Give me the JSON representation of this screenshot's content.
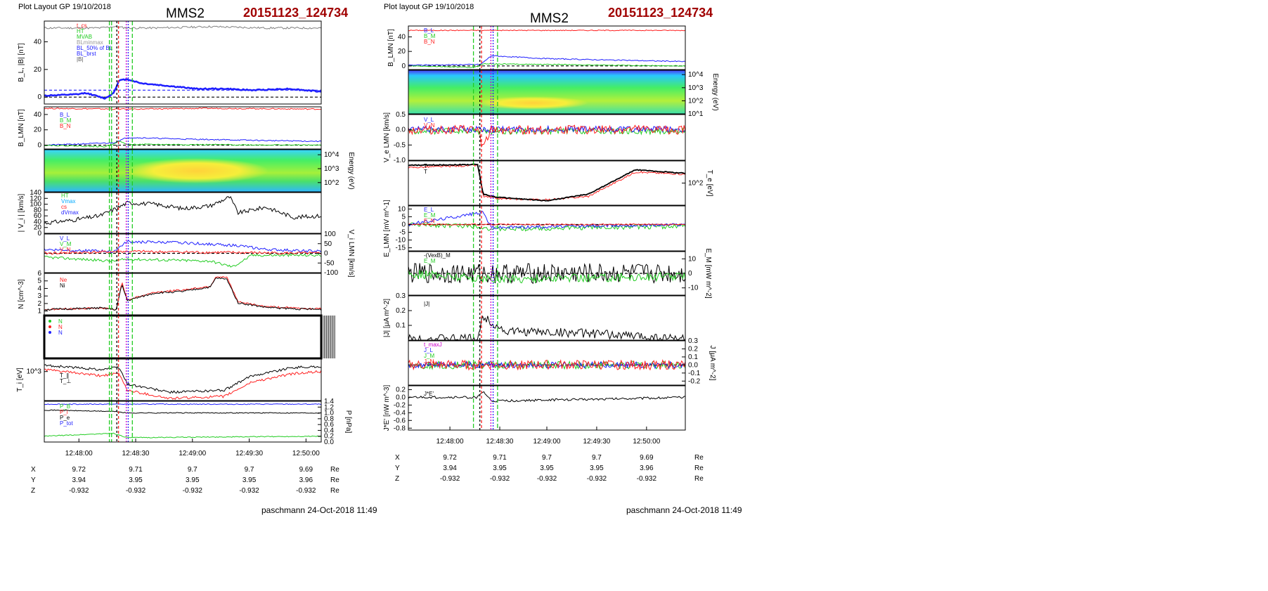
{
  "left": {
    "layout_label": "Plot Layout GP 19/10/2018",
    "spacecraft": "MMS2",
    "event_id": "20151123_124734",
    "footer": "paschmann 24-Oct-2018 11:49",
    "time_ticks": [
      "12:48:00",
      "12:48:30",
      "12:49:00",
      "12:49:30",
      "12:50:00"
    ],
    "ephem": [
      {
        "label": "X",
        "values": [
          "9.72",
          "9.71",
          "9.7",
          "9.7",
          "9.69"
        ],
        "unit": "Re"
      },
      {
        "label": "Y",
        "values": [
          "3.94",
          "3.95",
          "3.95",
          "3.95",
          "3.96"
        ],
        "unit": "Re"
      },
      {
        "label": "Z",
        "values": [
          "-0.932",
          "-0.932",
          "-0.932",
          "-0.932",
          "-0.932"
        ],
        "unit": "Re"
      }
    ]
  },
  "right": {
    "layout_label": "Plot layout GP 19/10/2018",
    "spacecraft": "MMS2",
    "event_id": "20151123_124734",
    "footer": "paschmann 24-Oct-2018 11:49",
    "time_ticks": [
      "12:48:00",
      "12:48:30",
      "12:49:00",
      "12:49:30",
      "12:50:00"
    ],
    "ephem": [
      {
        "label": "X",
        "values": [
          "9.72",
          "9.71",
          "9.7",
          "9.7",
          "9.69"
        ],
        "unit": "Re"
      },
      {
        "label": "Y",
        "values": [
          "3.94",
          "3.95",
          "3.95",
          "3.95",
          "3.96"
        ],
        "unit": "Re"
      },
      {
        "label": "Z",
        "values": [
          "-0.932",
          "-0.932",
          "-0.932",
          "-0.932",
          "-0.932"
        ],
        "unit": "Re"
      }
    ]
  },
  "colors": {
    "blue": "#1f1fff",
    "red": "#ff2020",
    "green": "#22cc22",
    "black": "#000000",
    "grey": "#808080",
    "cyan": "#00aaff",
    "magenta": "#cc00cc",
    "title_red": "#a00000"
  },
  "chart_data": [
    {
      "type": "line",
      "panel": "left-1",
      "ylabel": "B_L, |B| [nT]",
      "yticks": [
        "0",
        "20",
        "40"
      ],
      "ylim": [
        -5,
        55
      ],
      "legend": [
        "t_cs",
        "HT",
        "MVAB",
        "BLminmax",
        "BL_50% of BL",
        "BL_brst",
        "|B|"
      ],
      "series": [
        {
          "name": "|B|",
          "color": "grey",
          "x": [
            0,
            0.2,
            0.25,
            0.3,
            0.4,
            0.6,
            0.8,
            1
          ],
          "y": [
            50,
            50,
            51,
            50,
            50,
            51,
            50,
            50
          ]
        },
        {
          "name": "BL_brst",
          "color": "blue",
          "width": 2.5,
          "x": [
            0,
            0.12,
            0.15,
            0.22,
            0.25,
            0.27,
            0.3,
            0.35,
            0.45,
            0.55,
            0.65,
            0.75,
            0.88,
            1
          ],
          "y": [
            1,
            2,
            3,
            -1,
            3,
            12,
            13,
            10,
            8,
            6,
            6,
            5,
            6,
            4
          ]
        }
      ],
      "hlines": [
        {
          "y": 0,
          "style": "dash",
          "color": "black"
        },
        {
          "y": 5,
          "style": "dash",
          "color": "blue"
        }
      ]
    },
    {
      "type": "line",
      "panel": "left-2",
      "ylabel": "B_LMN [nT]",
      "yticks": [
        "0",
        "20",
        "40"
      ],
      "ylim": [
        -5,
        50
      ],
      "legend": [
        "B_L",
        "B_M",
        "B_N"
      ],
      "series": [
        {
          "name": "B_L",
          "color": "red",
          "x": [
            0,
            0.3,
            0.6,
            1
          ],
          "y": [
            48,
            47,
            48,
            47
          ]
        },
        {
          "name": "B_M",
          "color": "blue",
          "x": [
            0,
            0.25,
            0.3,
            0.5,
            0.8,
            1
          ],
          "y": [
            0,
            3,
            10,
            8,
            6,
            5
          ]
        },
        {
          "name": "B_N",
          "color": "green",
          "x": [
            0,
            0.22,
            0.27,
            0.3,
            1
          ],
          "y": [
            0,
            -2,
            5,
            1,
            0
          ]
        }
      ],
      "hlines": [
        {
          "y": 0,
          "style": "dash",
          "color": "black"
        }
      ]
    },
    {
      "type": "heatmap",
      "panel": "left-3",
      "ylabel": "Energy (eV)",
      "yticks": [
        "10^2",
        "10^3",
        "10^4"
      ]
    },
    {
      "type": "line",
      "panel": "left-4",
      "ylabel": "| V_i | [km/s]",
      "yticks": [
        "0",
        "20",
        "40",
        "60",
        "80",
        "100",
        "120",
        "140"
      ],
      "ylim": [
        0,
        140
      ],
      "legend": [
        "HT",
        "Vmax",
        "cs",
        "dVmax"
      ],
      "series": [
        {
          "name": "|V_i|",
          "color": "black",
          "x": [
            0,
            0.1,
            0.2,
            0.27,
            0.3,
            0.4,
            0.5,
            0.6,
            0.67,
            0.7,
            0.8,
            0.9,
            1
          ],
          "y": [
            35,
            45,
            60,
            90,
            105,
            100,
            85,
            95,
            125,
            70,
            90,
            55,
            60
          ]
        }
      ]
    },
    {
      "type": "line",
      "panel": "left-5",
      "ylabel": "V_i LMN [km/s]",
      "yticks": [
        "-100",
        "-50",
        "0",
        "50",
        "100"
      ],
      "ylim": [
        -100,
        100
      ],
      "legend": [
        "V_L",
        "V_M",
        "V_N"
      ],
      "series": [
        {
          "name": "V_L",
          "color": "blue",
          "x": [
            0,
            0.25,
            0.3,
            0.5,
            0.7,
            0.8,
            1
          ],
          "y": [
            20,
            10,
            60,
            55,
            40,
            20,
            10
          ]
        },
        {
          "name": "V_M",
          "color": "red",
          "x": [
            0,
            0.3,
            0.6,
            1
          ],
          "y": [
            0,
            10,
            5,
            0
          ]
        },
        {
          "name": "V_N",
          "color": "green",
          "x": [
            0,
            0.25,
            0.3,
            0.6,
            0.68,
            0.75,
            1
          ],
          "y": [
            -20,
            -40,
            -30,
            -40,
            -70,
            -10,
            -10
          ]
        }
      ],
      "hlines": [
        {
          "y": 0,
          "style": "dash",
          "color": "black"
        }
      ]
    },
    {
      "type": "line",
      "panel": "left-6",
      "ylabel": "N [cm^-3]",
      "yticks": [
        "1",
        "2",
        "3",
        "4",
        "5",
        "6"
      ],
      "ylim": [
        0.5,
        6
      ],
      "legend": [
        "Ne",
        "Ni"
      ],
      "series": [
        {
          "name": "Ne",
          "color": "red",
          "x": [
            0,
            0.2,
            0.26,
            0.28,
            0.3,
            0.4,
            0.5,
            0.6,
            0.62,
            0.66,
            0.7,
            0.8,
            0.9,
            1
          ],
          "y": [
            1.2,
            1.4,
            1.2,
            4.8,
            2.5,
            3.5,
            3.8,
            4.3,
            5.6,
            5.4,
            2.2,
            1.6,
            1.4,
            1.3
          ]
        },
        {
          "name": "Ni",
          "color": "black",
          "x": [
            0,
            0.2,
            0.26,
            0.28,
            0.3,
            0.4,
            0.5,
            0.6,
            0.62,
            0.66,
            0.7,
            0.8,
            0.9,
            1
          ],
          "y": [
            1.2,
            1.4,
            1.2,
            4.5,
            2.4,
            3.4,
            3.6,
            4.2,
            5.4,
            5.2,
            2.1,
            1.5,
            1.3,
            1.2
          ]
        }
      ]
    },
    {
      "type": "line",
      "panel": "left-7",
      "legend": [
        "N",
        "N",
        "N"
      ]
    },
    {
      "type": "line",
      "panel": "left-8",
      "ylabel": "T_i [eV]",
      "yticks": [
        "10^3"
      ],
      "legend": [
        "T_∥",
        "T_⊥"
      ],
      "series": [
        {
          "name": "T_∥",
          "color": "black",
          "x": [
            0,
            0.2,
            0.27,
            0.3,
            0.45,
            0.65,
            0.75,
            0.9,
            1
          ],
          "y": [
            0.85,
            0.75,
            0.8,
            0.4,
            0.2,
            0.25,
            0.6,
            0.8,
            0.82
          ]
        },
        {
          "name": "T_⊥",
          "color": "red",
          "x": [
            0,
            0.2,
            0.27,
            0.3,
            0.45,
            0.65,
            0.75,
            0.9,
            1
          ],
          "y": [
            0.75,
            0.6,
            0.65,
            0.25,
            0.05,
            0.1,
            0.45,
            0.65,
            0.7
          ]
        }
      ]
    },
    {
      "type": "line",
      "panel": "left-9",
      "ylabel": "P [nPa]",
      "yticks": [
        "0.0",
        "0.2",
        "0.4",
        "0.6",
        "0.8",
        "1.0",
        "1.2",
        "1.4"
      ],
      "ylim": [
        0,
        1.4
      ],
      "legend": [
        "P_B",
        "P_i",
        "P_e",
        "P_tot"
      ],
      "series": [
        {
          "name": "P_tot",
          "color": "blue",
          "x": [
            0,
            1
          ],
          "y": [
            1.3,
            1.3
          ]
        },
        {
          "name": "P_B",
          "color": "black",
          "x": [
            0,
            0.25,
            0.3,
            1
          ],
          "y": [
            1.1,
            1.05,
            1.0,
            1.0
          ]
        },
        {
          "name": "P_i",
          "color": "green",
          "x": [
            0,
            0.25,
            0.3,
            1
          ],
          "y": [
            0.2,
            0.3,
            0.15,
            0.2
          ]
        }
      ]
    }
  ]
}
